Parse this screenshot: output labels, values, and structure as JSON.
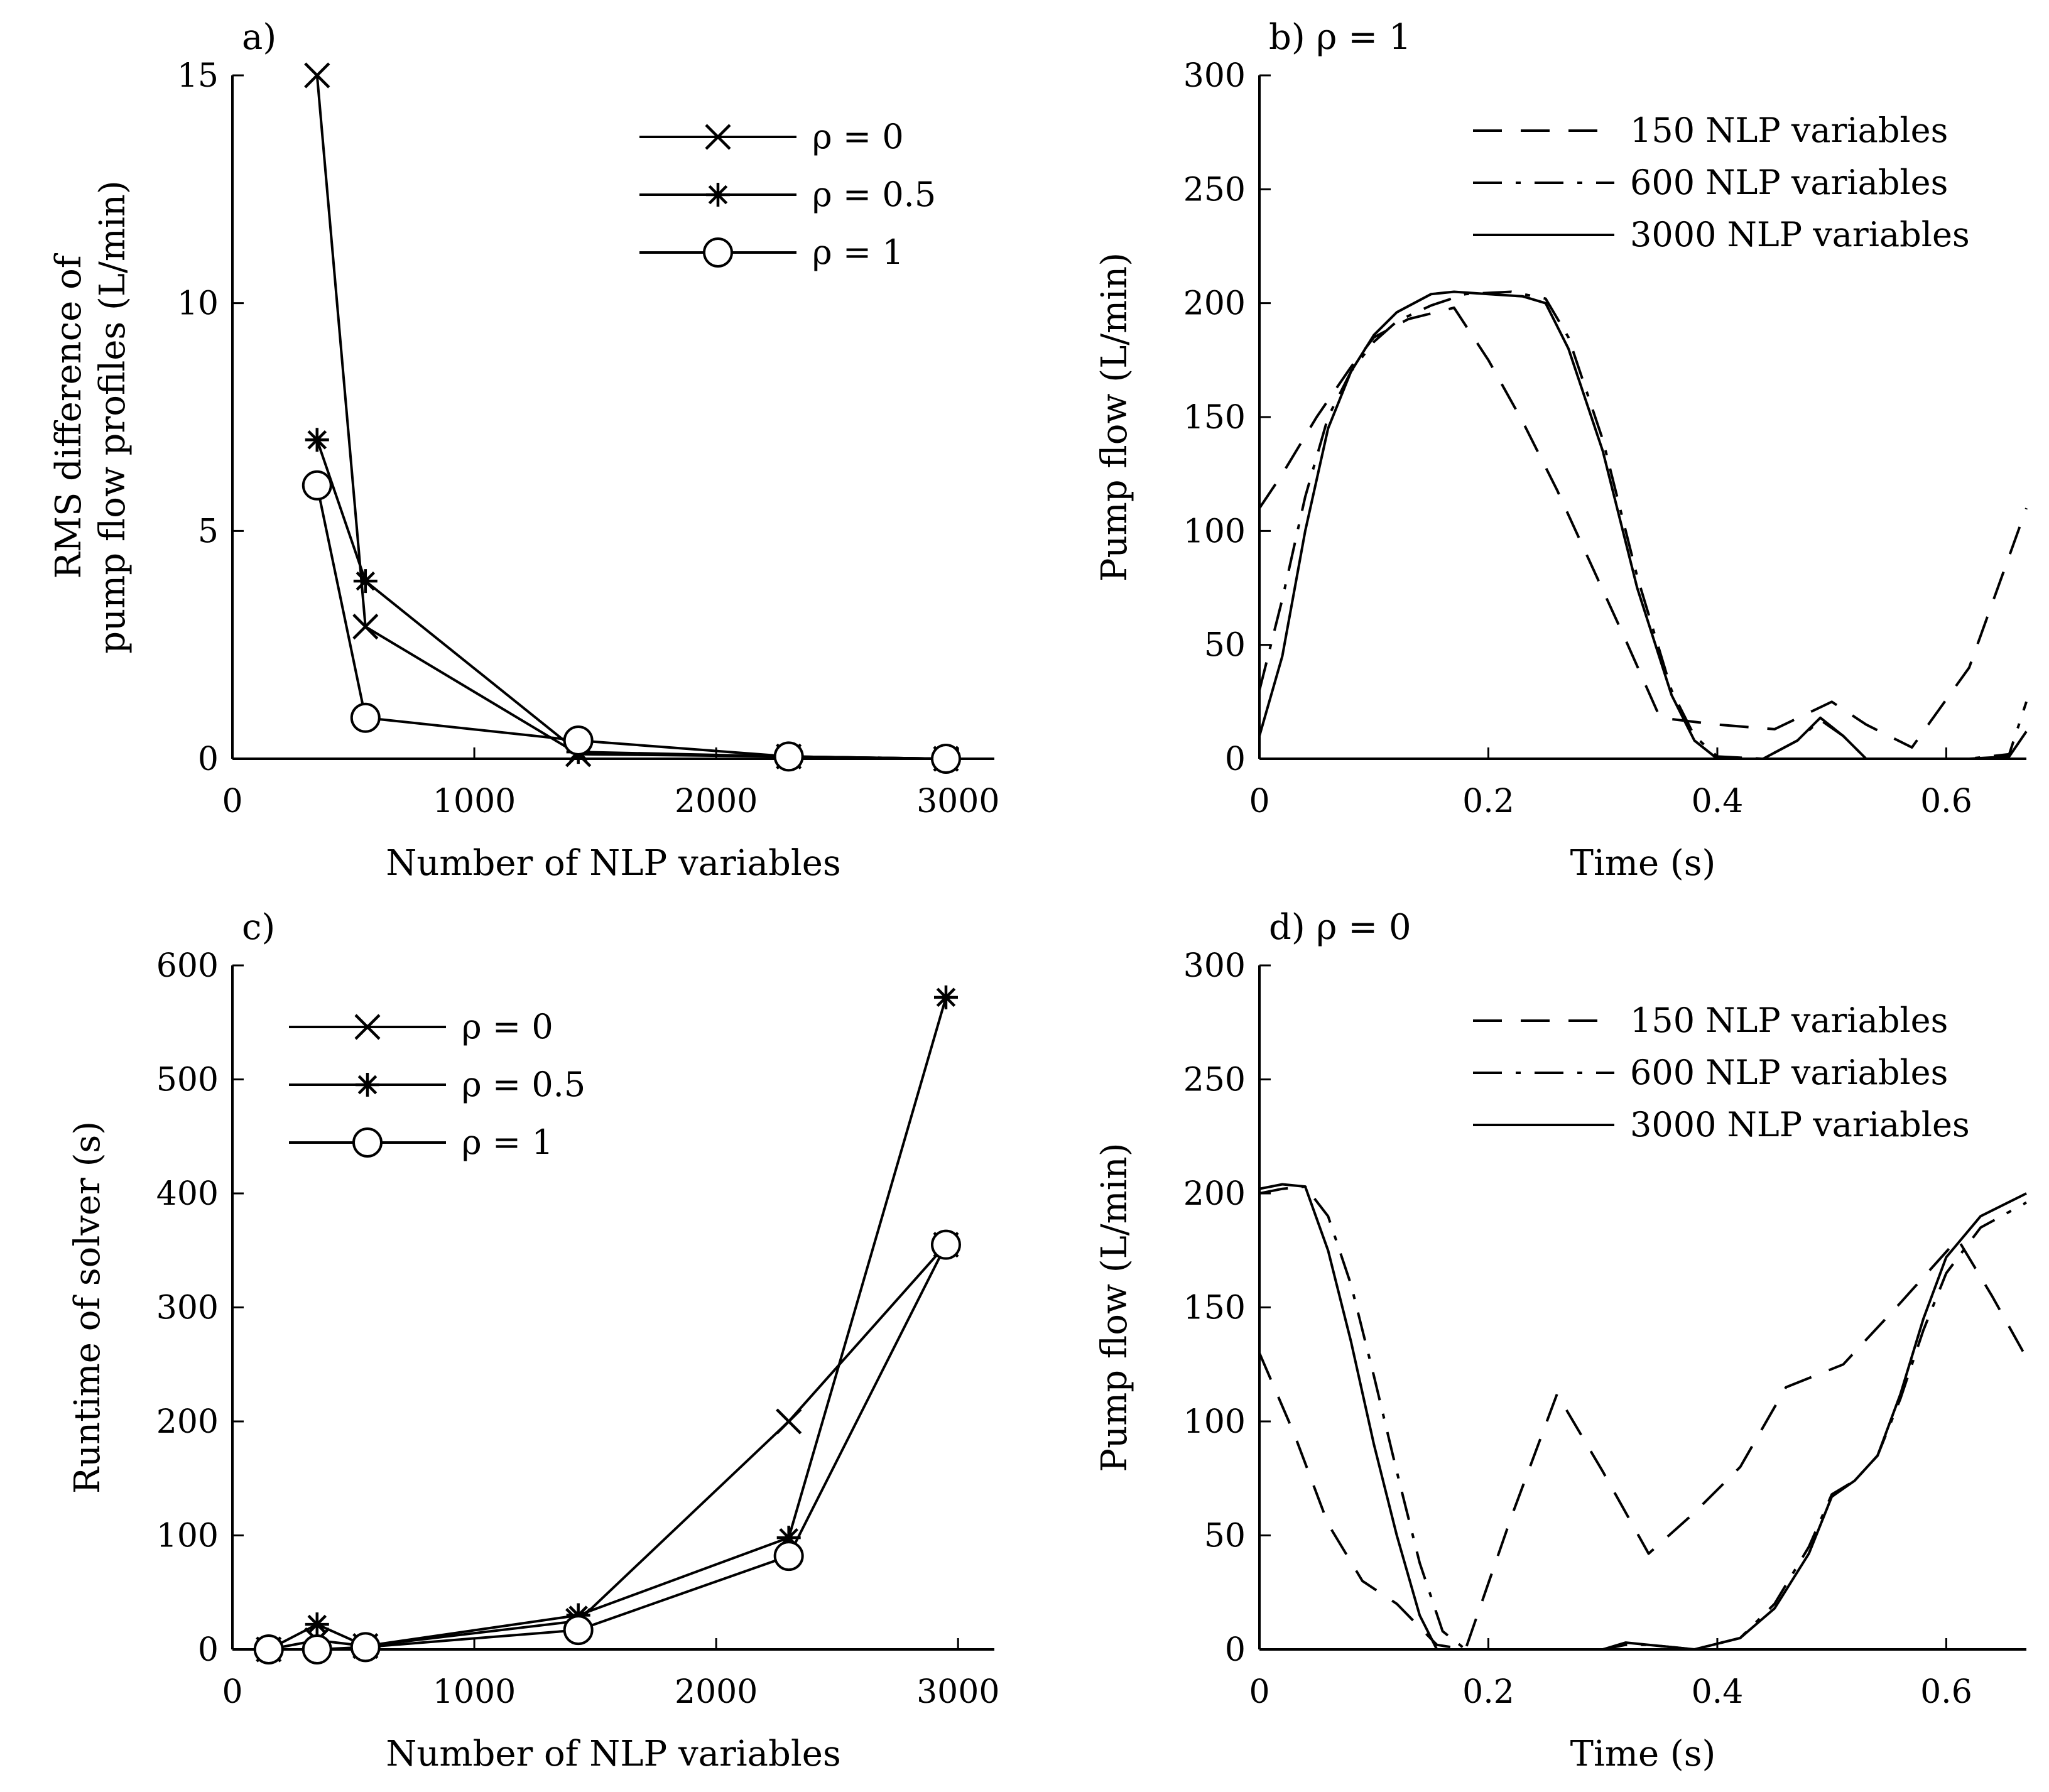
{
  "chart_data": [
    {
      "id": "a",
      "type": "line",
      "panel_label": "a)",
      "xlabel": "Number of NLP variables",
      "ylabel_line1": "RMS difference of",
      "ylabel_line2": "pump flow profiles (L/min)",
      "xlim": [
        0,
        3150
      ],
      "ylim": [
        0,
        15
      ],
      "xticks": [
        0,
        1000,
        2000,
        3000
      ],
      "yticks": [
        0,
        5,
        10,
        15
      ],
      "xtick_labels": [
        "0",
        "1000",
        "2000",
        "3000"
      ],
      "ytick_labels": [
        "0",
        "5",
        "10",
        "15"
      ],
      "legend_position": "top-right",
      "series": [
        {
          "name": "ρ = 0",
          "marker": "x",
          "x": [
            350,
            550,
            1430,
            2300,
            2950
          ],
          "y": [
            15.0,
            2.9,
            0.1,
            0.05,
            0.0
          ]
        },
        {
          "name": "ρ = 0.5",
          "marker": "star",
          "x": [
            350,
            550,
            1430,
            2300,
            2950
          ],
          "y": [
            7.0,
            3.9,
            0.15,
            0.05,
            0.0
          ]
        },
        {
          "name": "ρ = 1",
          "marker": "circle",
          "x": [
            350,
            550,
            1430,
            2300,
            2950
          ],
          "y": [
            6.0,
            0.9,
            0.4,
            0.05,
            0.0
          ]
        }
      ]
    },
    {
      "id": "b",
      "type": "line",
      "panel_label": "b) ρ = 1",
      "xlabel": "Time (s)",
      "ylabel": "Pump flow (L/min)",
      "xlim": [
        0,
        0.67
      ],
      "ylim": [
        0,
        300
      ],
      "xticks": [
        0,
        0.2,
        0.4,
        0.6
      ],
      "yticks": [
        0,
        50,
        100,
        150,
        200,
        250,
        300
      ],
      "xtick_labels": [
        "0",
        "0.2",
        "0.4",
        "0.6"
      ],
      "ytick_labels": [
        "0",
        "50",
        "100",
        "150",
        "200",
        "250",
        "300"
      ],
      "legend_position": "top-right",
      "series": [
        {
          "name": "150 NLP variables",
          "style": "dashed",
          "x": [
            0,
            0.02,
            0.05,
            0.08,
            0.1,
            0.13,
            0.17,
            0.2,
            0.23,
            0.26,
            0.29,
            0.32,
            0.35,
            0.4,
            0.45,
            0.5,
            0.53,
            0.57,
            0.62,
            0.67
          ],
          "y": [
            110,
            125,
            150,
            172,
            185,
            193,
            198,
            175,
            148,
            118,
            85,
            52,
            18,
            15,
            13,
            25,
            15,
            5,
            40,
            110
          ]
        },
        {
          "name": "600 NLP variables",
          "style": "dashdot",
          "x": [
            0,
            0.02,
            0.04,
            0.06,
            0.08,
            0.1,
            0.12,
            0.15,
            0.18,
            0.22,
            0.25,
            0.27,
            0.3,
            0.33,
            0.36,
            0.38,
            0.4,
            0.44,
            0.47,
            0.49,
            0.51,
            0.53,
            0.57,
            0.62,
            0.655,
            0.67
          ],
          "y": [
            30,
            70,
            115,
            150,
            170,
            183,
            192,
            199,
            204,
            205,
            202,
            185,
            140,
            80,
            30,
            10,
            1,
            0,
            8,
            17,
            10,
            0,
            0,
            0,
            2,
            25
          ]
        },
        {
          "name": "3000 NLP variables",
          "style": "solid",
          "x": [
            0,
            0.02,
            0.04,
            0.06,
            0.08,
            0.1,
            0.12,
            0.15,
            0.17,
            0.2,
            0.23,
            0.25,
            0.27,
            0.3,
            0.33,
            0.36,
            0.38,
            0.4,
            0.44,
            0.47,
            0.49,
            0.51,
            0.53,
            0.57,
            0.62,
            0.655,
            0.67
          ],
          "y": [
            10,
            45,
            100,
            145,
            170,
            186,
            196,
            204,
            205,
            204,
            203,
            200,
            180,
            135,
            75,
            28,
            8,
            0,
            0,
            8,
            18,
            10,
            0,
            0,
            0,
            1,
            12
          ]
        }
      ]
    },
    {
      "id": "c",
      "type": "line",
      "panel_label": "c)",
      "xlabel": "Number of NLP variables",
      "ylabel": "Runtime of solver (s)",
      "xlim": [
        0,
        3150
      ],
      "ylim": [
        0,
        600
      ],
      "xticks": [
        0,
        1000,
        2000,
        3000
      ],
      "yticks": [
        0,
        100,
        200,
        300,
        400,
        500,
        600
      ],
      "xtick_labels": [
        "0",
        "1000",
        "2000",
        "3000"
      ],
      "ytick_labels": [
        "0",
        "100",
        "200",
        "300",
        "400",
        "500",
        "600"
      ],
      "legend_position": "top-left",
      "series": [
        {
          "name": "ρ = 0",
          "marker": "x",
          "x": [
            150,
            350,
            550,
            1430,
            2300,
            2950
          ],
          "y": [
            0,
            8,
            3,
            25,
            200,
            355
          ]
        },
        {
          "name": "ρ = 0.5",
          "marker": "star",
          "x": [
            150,
            350,
            550,
            1430,
            2300,
            2950
          ],
          "y": [
            0,
            22,
            3,
            30,
            98,
            572
          ]
        },
        {
          "name": "ρ = 1",
          "marker": "circle",
          "x": [
            150,
            350,
            550,
            1430,
            2300,
            2950
          ],
          "y": [
            0,
            0,
            2,
            17,
            82,
            355
          ]
        }
      ]
    },
    {
      "id": "d",
      "type": "line",
      "panel_label": "d) ρ = 0",
      "xlabel": "Time (s)",
      "ylabel": "Pump flow (L/min)",
      "xlim": [
        0,
        0.67
      ],
      "ylim": [
        0,
        300
      ],
      "xticks": [
        0,
        0.2,
        0.4,
        0.6
      ],
      "yticks": [
        0,
        50,
        100,
        150,
        200,
        250,
        300
      ],
      "xtick_labels": [
        "0",
        "0.2",
        "0.4",
        "0.6"
      ],
      "ytick_labels": [
        "0",
        "50",
        "100",
        "150",
        "200",
        "250",
        "300"
      ],
      "legend_position": "top-right",
      "series": [
        {
          "name": "150 NLP variables",
          "style": "dashed",
          "x": [
            0,
            0.03,
            0.06,
            0.09,
            0.12,
            0.155,
            0.18,
            0.22,
            0.26,
            0.3,
            0.34,
            0.38,
            0.42,
            0.46,
            0.51,
            0.56,
            0.61,
            0.64,
            0.67
          ],
          "y": [
            130,
            95,
            55,
            30,
            20,
            2,
            0,
            58,
            112,
            78,
            42,
            60,
            80,
            115,
            125,
            152,
            180,
            155,
            128
          ]
        },
        {
          "name": "600 NLP variables",
          "style": "dashdot",
          "x": [
            0,
            0.02,
            0.04,
            0.06,
            0.08,
            0.1,
            0.12,
            0.14,
            0.16,
            0.18,
            0.2,
            0.3,
            0.32,
            0.34,
            0.38,
            0.42,
            0.45,
            0.48,
            0.5,
            0.52,
            0.54,
            0.56,
            0.58,
            0.6,
            0.63,
            0.67
          ],
          "y": [
            200,
            202,
            203,
            190,
            160,
            120,
            78,
            38,
            8,
            0,
            0,
            0,
            2,
            2,
            0,
            5,
            20,
            45,
            68,
            74,
            85,
            110,
            140,
            165,
            185,
            196
          ]
        },
        {
          "name": "3000 NLP variables",
          "style": "solid",
          "x": [
            0,
            0.02,
            0.04,
            0.06,
            0.08,
            0.1,
            0.12,
            0.14,
            0.155,
            0.17,
            0.2,
            0.3,
            0.32,
            0.34,
            0.38,
            0.42,
            0.45,
            0.48,
            0.5,
            0.52,
            0.54,
            0.56,
            0.58,
            0.6,
            0.63,
            0.67
          ],
          "y": [
            202,
            204,
            203,
            175,
            135,
            90,
            50,
            15,
            0,
            0,
            0,
            0,
            3,
            2,
            0,
            5,
            18,
            42,
            67,
            74,
            85,
            112,
            145,
            172,
            190,
            200
          ]
        }
      ]
    }
  ]
}
